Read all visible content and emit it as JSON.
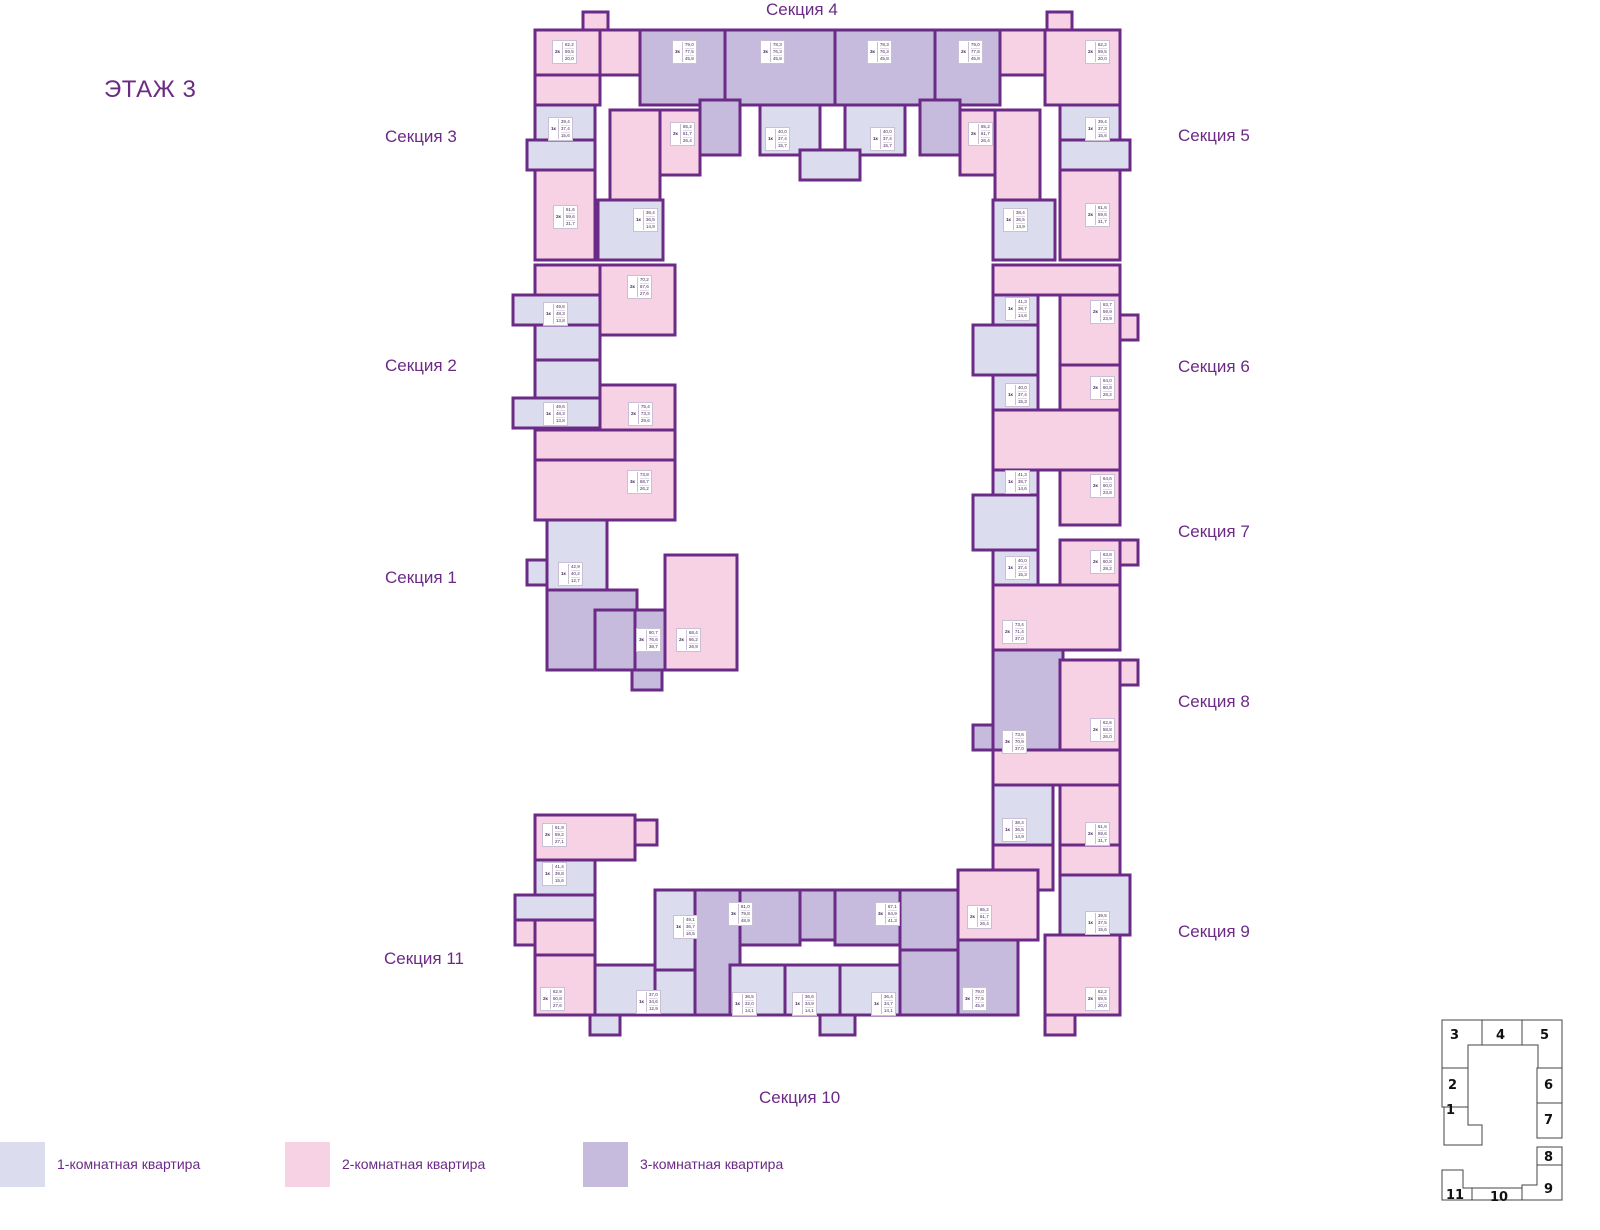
{
  "floor_title": "ЭТАЖ 3",
  "colors": {
    "one_room": "#dcdcef",
    "two_room": "#f7d2e4",
    "three_room": "#c6badd",
    "walls": "#6b2a86"
  },
  "sections": [
    "Секция 1",
    "Секция 2",
    "Секция 3",
    "Секция 4",
    "Секция 5",
    "Секция 6",
    "Секция 7",
    "Секция 8",
    "Секция 9",
    "Секция 10",
    "Секция 11"
  ],
  "apartments": [
    {
      "type": "2к",
      "total": "62,2",
      "living": "59,5",
      "kitchen": "20,0"
    },
    {
      "type": "3к",
      "total": "79,0",
      "living": "77,5",
      "kitchen": "45,8"
    },
    {
      "type": "3к",
      "total": "78,3",
      "living": "76,3",
      "kitchen": "45,8"
    },
    {
      "type": "3к",
      "total": "78,3",
      "living": "76,3",
      "kitchen": "45,8"
    },
    {
      "type": "2к",
      "total": "79,0",
      "living": "77,5",
      "kitchen": "45,8"
    },
    {
      "type": "2к",
      "total": "62,2",
      "living": "59,5",
      "kitchen": "20,0"
    },
    {
      "type": "1к",
      "total": "39,4",
      "living": "37,4",
      "kitchen": "15,6"
    },
    {
      "type": "2к",
      "total": "65,2",
      "living": "61,7",
      "kitchen": "26,4"
    },
    {
      "type": "1к",
      "total": "40,0",
      "living": "37,4",
      "kitchen": "15,7"
    },
    {
      "type": "1к",
      "total": "40,0",
      "living": "37,4",
      "kitchen": "15,7"
    },
    {
      "type": "2к",
      "total": "65,2",
      "living": "61,7",
      "kitchen": "26,4"
    },
    {
      "type": "1к",
      "total": "39,4",
      "living": "37,3",
      "kitchen": "15,6"
    },
    {
      "type": "2к",
      "total": "61,6",
      "living": "59,6",
      "kitchen": "31,7"
    },
    {
      "type": "1к",
      "total": "38,4",
      "living": "36,5",
      "kitchen": "14,9"
    },
    {
      "type": "1к",
      "total": "38,4",
      "living": "36,5",
      "kitchen": "14,9"
    },
    {
      "type": "2к",
      "total": "61,6",
      "living": "59,6",
      "kitchen": "31,7"
    },
    {
      "type": "2к",
      "total": "70,2",
      "living": "67,6",
      "kitchen": "27,6"
    },
    {
      "type": "1к",
      "total": "49,6",
      "living": "48,3",
      "kitchen": "13,8"
    },
    {
      "type": "1к",
      "total": "49,6",
      "living": "48,3",
      "kitchen": "13,8"
    },
    {
      "type": "2к",
      "total": "75,4",
      "living": "73,3",
      "kitchen": "29,6"
    },
    {
      "type": "3к",
      "total": "73,8",
      "living": "68,7",
      "kitchen": "26,2"
    },
    {
      "type": "1к",
      "total": "42,9",
      "living": "40,2",
      "kitchen": "12,7"
    },
    {
      "type": "3к",
      "total": "80,7",
      "living": "76,6",
      "kitchen": "38,7"
    },
    {
      "type": "2к",
      "total": "68,4",
      "living": "66,2",
      "kitchen": "26,9"
    },
    {
      "type": "1к",
      "total": "41,3",
      "living": "38,7",
      "kitchen": "14,6"
    },
    {
      "type": "2к",
      "total": "63,7",
      "living": "59,9",
      "kitchen": "23,9"
    },
    {
      "type": "1к",
      "total": "40,0",
      "living": "37,4",
      "kitchen": "15,3"
    },
    {
      "type": "2к",
      "total": "64,0",
      "living": "60,8",
      "kitchen": "28,2"
    },
    {
      "type": "1к",
      "total": "41,3",
      "living": "38,7",
      "kitchen": "14,6"
    },
    {
      "type": "2к",
      "total": "64,6",
      "living": "60,0",
      "kitchen": "23,8"
    },
    {
      "type": "1к",
      "total": "40,0",
      "living": "37,4",
      "kitchen": "15,3"
    },
    {
      "type": "2к",
      "total": "63,8",
      "living": "60,8",
      "kitchen": "28,2"
    },
    {
      "type": "2к",
      "total": "73,4",
      "living": "71,4",
      "kitchen": "37,0"
    },
    {
      "type": "3к",
      "total": "73,6",
      "living": "70,9",
      "kitchen": "37,0"
    },
    {
      "type": "2к",
      "total": "62,6",
      "living": "58,8",
      "kitchen": "26,0"
    },
    {
      "type": "1к",
      "total": "38,4",
      "living": "36,5",
      "kitchen": "14,9"
    },
    {
      "type": "2к",
      "total": "61,6",
      "living": "59,6",
      "kitchen": "31,7"
    },
    {
      "type": "2к",
      "total": "65,2",
      "living": "61,7",
      "kitchen": "26,4"
    },
    {
      "type": "1к",
      "total": "39,5",
      "living": "37,5",
      "kitchen": "15,6"
    },
    {
      "type": "2к",
      "total": "62,2",
      "living": "59,5",
      "kitchen": "20,0"
    },
    {
      "type": "3к",
      "total": "79,0",
      "living": "77,5",
      "kitchen": "45,8"
    },
    {
      "type": "3к",
      "total": "67,1",
      "living": "64,9",
      "kitchen": "41,3"
    },
    {
      "type": "3к",
      "total": "81,0",
      "living": "79,8",
      "kitchen": "48,9"
    },
    {
      "type": "1к",
      "total": "49,1",
      "living": "36,7",
      "kitchen": "16,5"
    },
    {
      "type": "1к",
      "total": "36,5",
      "living": "32,0",
      "kitchen": "14,1"
    },
    {
      "type": "1к",
      "total": "36,6",
      "living": "34,9",
      "kitchen": "14,1"
    },
    {
      "type": "1к",
      "total": "36,4",
      "living": "34,7",
      "kitchen": "14,1"
    },
    {
      "type": "2к",
      "total": "61,9",
      "living": "59,2",
      "kitchen": "27,1"
    },
    {
      "type": "1к",
      "total": "41,4",
      "living": "39,8",
      "kitchen": "15,6"
    },
    {
      "type": "2к",
      "total": "62,9",
      "living": "60,8",
      "kitchen": "27,6"
    },
    {
      "type": "1к",
      "total": "37,0",
      "living": "34,6",
      "kitchen": "12,9"
    }
  ],
  "legend": [
    {
      "label": "1-комнатная квартира",
      "color": "#dcdcef"
    },
    {
      "label": "2-комнатная квартира",
      "color": "#f7d2e4"
    },
    {
      "label": "3-комнатная квартира",
      "color": "#c6badd"
    }
  ],
  "minimap": {
    "numbers": [
      "1",
      "2",
      "3",
      "4",
      "5",
      "6",
      "7",
      "8",
      "9",
      "10",
      "11"
    ]
  }
}
